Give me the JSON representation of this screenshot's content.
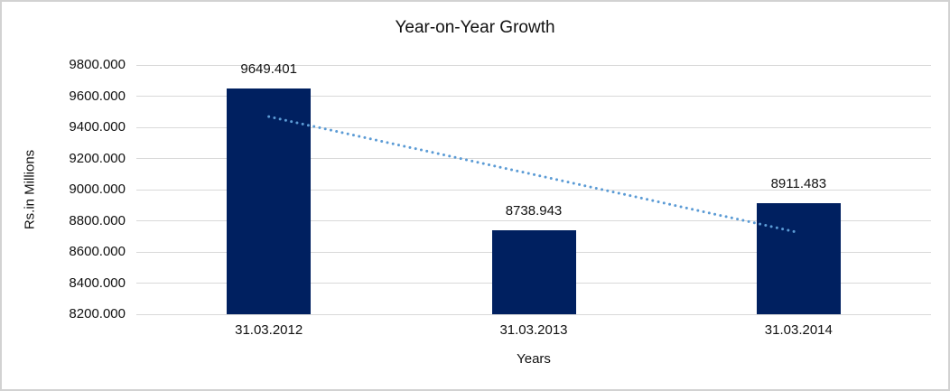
{
  "chart": {
    "title": "Year-on-Year Growth",
    "ylabel": "Rs.in Millions",
    "xlabel": "Years"
  },
  "chart_data": {
    "type": "bar",
    "title": "Year-on-Year Growth",
    "xlabel": "Years",
    "ylabel": "Rs.in Millions",
    "categories": [
      "31.03.2012",
      "31.03.2013",
      "31.03.2014"
    ],
    "values": [
      9649.401,
      8738.943,
      8911.483
    ],
    "data_labels": [
      "9649.401",
      "8738.943",
      "8911.483"
    ],
    "ylim": [
      8200,
      9800
    ],
    "ytick_step": 200,
    "ytick_labels": [
      "9800.000",
      "9600.000",
      "9400.000",
      "9200.000",
      "9000.000",
      "8800.000",
      "8600.000",
      "8400.000",
      "8200.000"
    ],
    "grid": true,
    "legend": false,
    "colors": {
      "bar": "#002060",
      "gridline": "#d9d9d9",
      "trendline": "#5b9bd5",
      "text": "#111111"
    },
    "trendline": {
      "type": "linear",
      "style": "dotted",
      "color": "#5b9bd5",
      "start_value": 9468.9,
      "end_value": 8731.0
    }
  }
}
